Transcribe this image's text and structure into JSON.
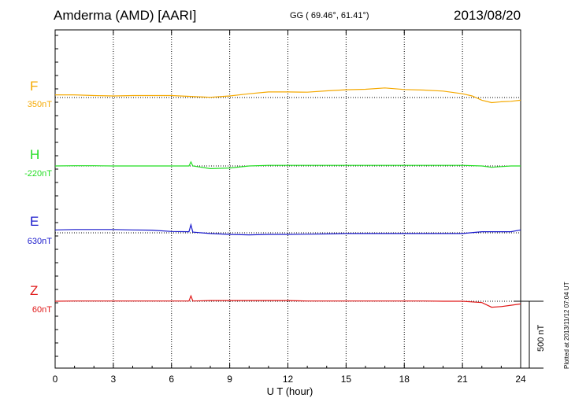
{
  "header": {
    "station": "Amderma (AMD)  [AARI]",
    "coords": "GG ( 69.46°,  61.41°)",
    "date": "2013/08/20"
  },
  "plotted_note": "Plotted at 2013/11/12 07:04 UT",
  "scale_bar": {
    "label": "500 nT",
    "value_nT": 500
  },
  "chart_data": {
    "type": "line",
    "xlabel": "U T (hour)",
    "xlim": [
      0,
      24
    ],
    "xticks": [
      0,
      3,
      6,
      9,
      12,
      15,
      18,
      21,
      24
    ],
    "grid": "dotted vertical lines at 3-hour intervals",
    "series": [
      {
        "name": "F",
        "baseline_label": "350nT",
        "baseline_nT": 350,
        "color": "#f5a900",
        "x": [
          0,
          1,
          2,
          3,
          4,
          5,
          6,
          7,
          8,
          9,
          10,
          11,
          12,
          13,
          14,
          15,
          16,
          17,
          18,
          19,
          20,
          21,
          21.5,
          22,
          22.5,
          23,
          23.5,
          24
        ],
        "y": [
          20,
          20,
          15,
          12,
          15,
          15,
          15,
          8,
          2,
          12,
          28,
          42,
          42,
          40,
          50,
          58,
          62,
          72,
          60,
          56,
          48,
          28,
          12,
          -20,
          -38,
          -32,
          -28,
          -20
        ]
      },
      {
        "name": "H",
        "baseline_label": "-220nT",
        "baseline_nT": -220,
        "color": "#22dd22",
        "x": [
          0,
          1,
          2,
          3,
          4,
          5,
          6,
          6.9,
          7.0,
          7.1,
          8,
          9,
          10,
          11,
          12,
          13,
          14,
          15,
          16,
          17,
          18,
          19,
          20,
          21,
          22,
          22.5,
          23,
          23.5,
          24
        ],
        "y": [
          0,
          2,
          2,
          0,
          0,
          0,
          0,
          0,
          30,
          0,
          -20,
          -15,
          0,
          5,
          5,
          5,
          5,
          5,
          5,
          5,
          5,
          5,
          5,
          5,
          0,
          -10,
          -5,
          0,
          0
        ]
      },
      {
        "name": "E",
        "baseline_label": "630nT",
        "baseline_nT": 630,
        "color": "#1a1acc",
        "x": [
          0,
          1,
          2,
          3,
          4,
          5,
          6,
          6.9,
          7.0,
          7.1,
          8,
          9,
          10,
          11,
          12,
          13,
          14,
          15,
          16,
          17,
          18,
          19,
          20,
          21,
          22,
          23,
          23.5,
          24
        ],
        "y": [
          22,
          25,
          25,
          25,
          22,
          20,
          10,
          8,
          60,
          5,
          -5,
          -12,
          -15,
          -12,
          -12,
          -10,
          -8,
          -5,
          -5,
          -5,
          -5,
          -5,
          -5,
          -5,
          8,
          8,
          8,
          22
        ]
      },
      {
        "name": "Z",
        "baseline_label": "60nT",
        "baseline_nT": 60,
        "color": "#e01818",
        "x": [
          0,
          1,
          2,
          3,
          4,
          5,
          6,
          6.9,
          7.0,
          7.1,
          8,
          9,
          10,
          11,
          12,
          13,
          14,
          15,
          16,
          17,
          18,
          19,
          20,
          21,
          22,
          22.5,
          23,
          23.5,
          24
        ],
        "y": [
          0,
          2,
          2,
          2,
          2,
          2,
          2,
          2,
          40,
          2,
          5,
          5,
          5,
          5,
          5,
          2,
          2,
          2,
          2,
          2,
          2,
          2,
          0,
          0,
          -10,
          -45,
          -40,
          -30,
          -20
        ]
      }
    ]
  }
}
